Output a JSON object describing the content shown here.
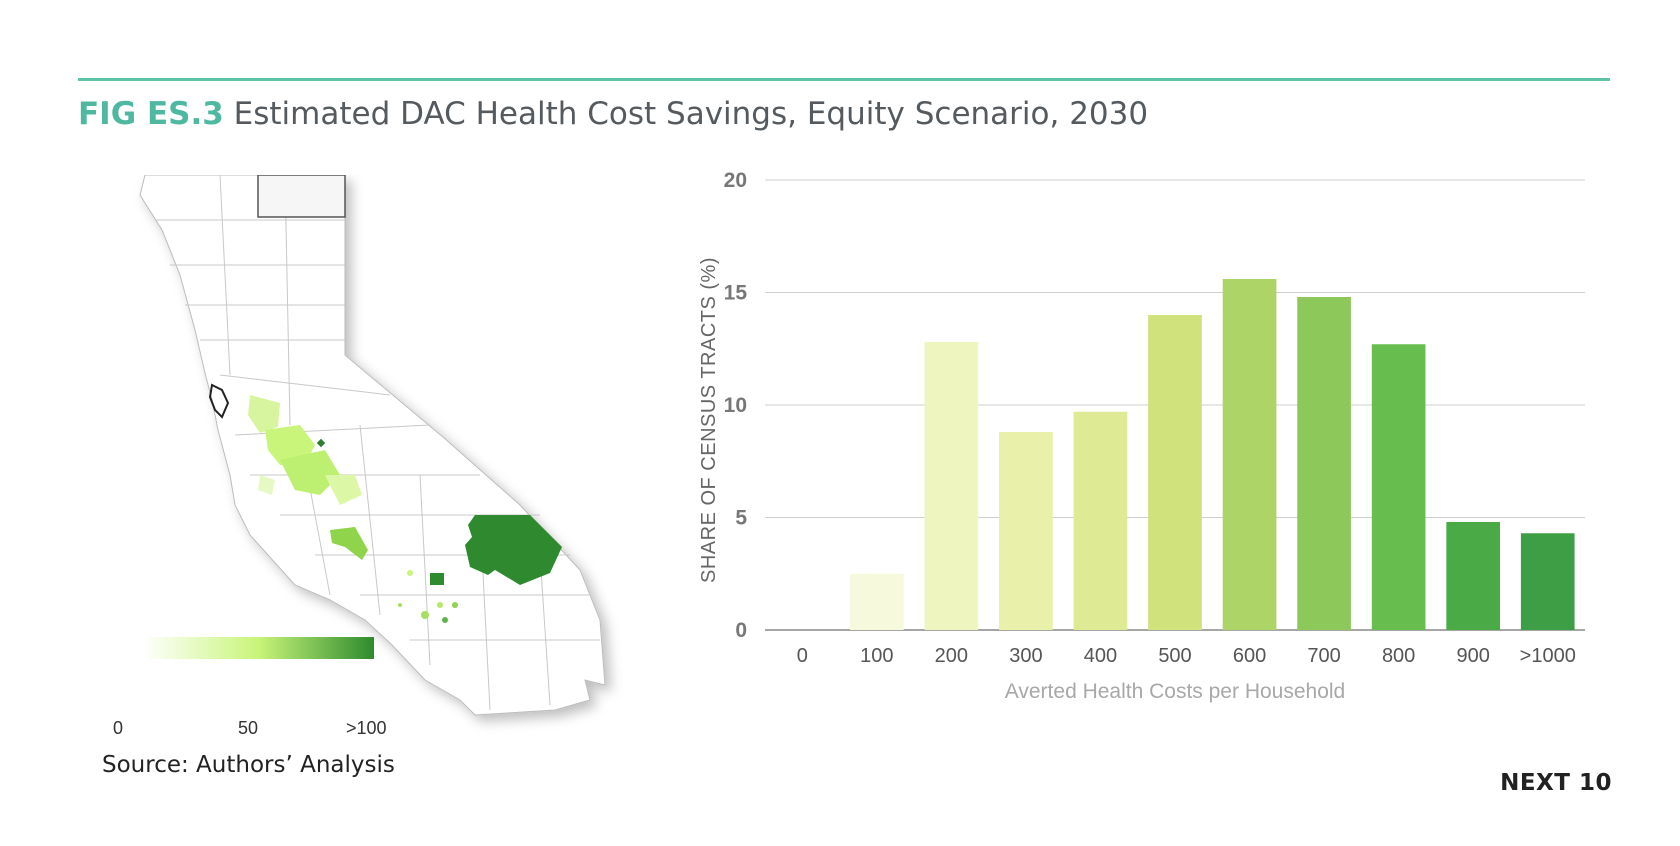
{
  "header": {
    "fig_label": "FIG ES.3",
    "title": "Estimated DAC Health Cost Savings, Equity Scenario, 2030"
  },
  "map": {
    "legend": {
      "ticks": [
        "0",
        "50",
        ">100"
      ],
      "colors": [
        "#ffffff",
        "#c9f57a",
        "#2e8b2e"
      ]
    },
    "source": "Source: Authors’ Analysis"
  },
  "brand": "NEXT 10",
  "chart_data": {
    "type": "bar",
    "xlabel": "Averted Health Costs per Household",
    "ylabel": "SHARE OF CENSUS TRACTS (%)",
    "ylim": [
      0,
      20
    ],
    "yticks": [
      "0",
      "5",
      "10",
      "15",
      "20"
    ],
    "ytick_values": [
      0,
      5,
      10,
      15,
      20
    ],
    "grid": true,
    "categories": [
      "0",
      "100",
      "200",
      "300",
      "400",
      "500",
      "600",
      "700",
      "800",
      "900",
      ">1000"
    ],
    "values": [
      0,
      2.5,
      12.8,
      8.8,
      9.7,
      14.0,
      15.6,
      14.8,
      12.7,
      4.8,
      4.3
    ],
    "colors": [
      "#fdfdf0",
      "#f7f9dc",
      "#eff5be",
      "#e9f0aa",
      "#dfeb94",
      "#cfe27b",
      "#acd466",
      "#8dc85a",
      "#67bd4e",
      "#4aaa45",
      "#3d9e45"
    ]
  }
}
